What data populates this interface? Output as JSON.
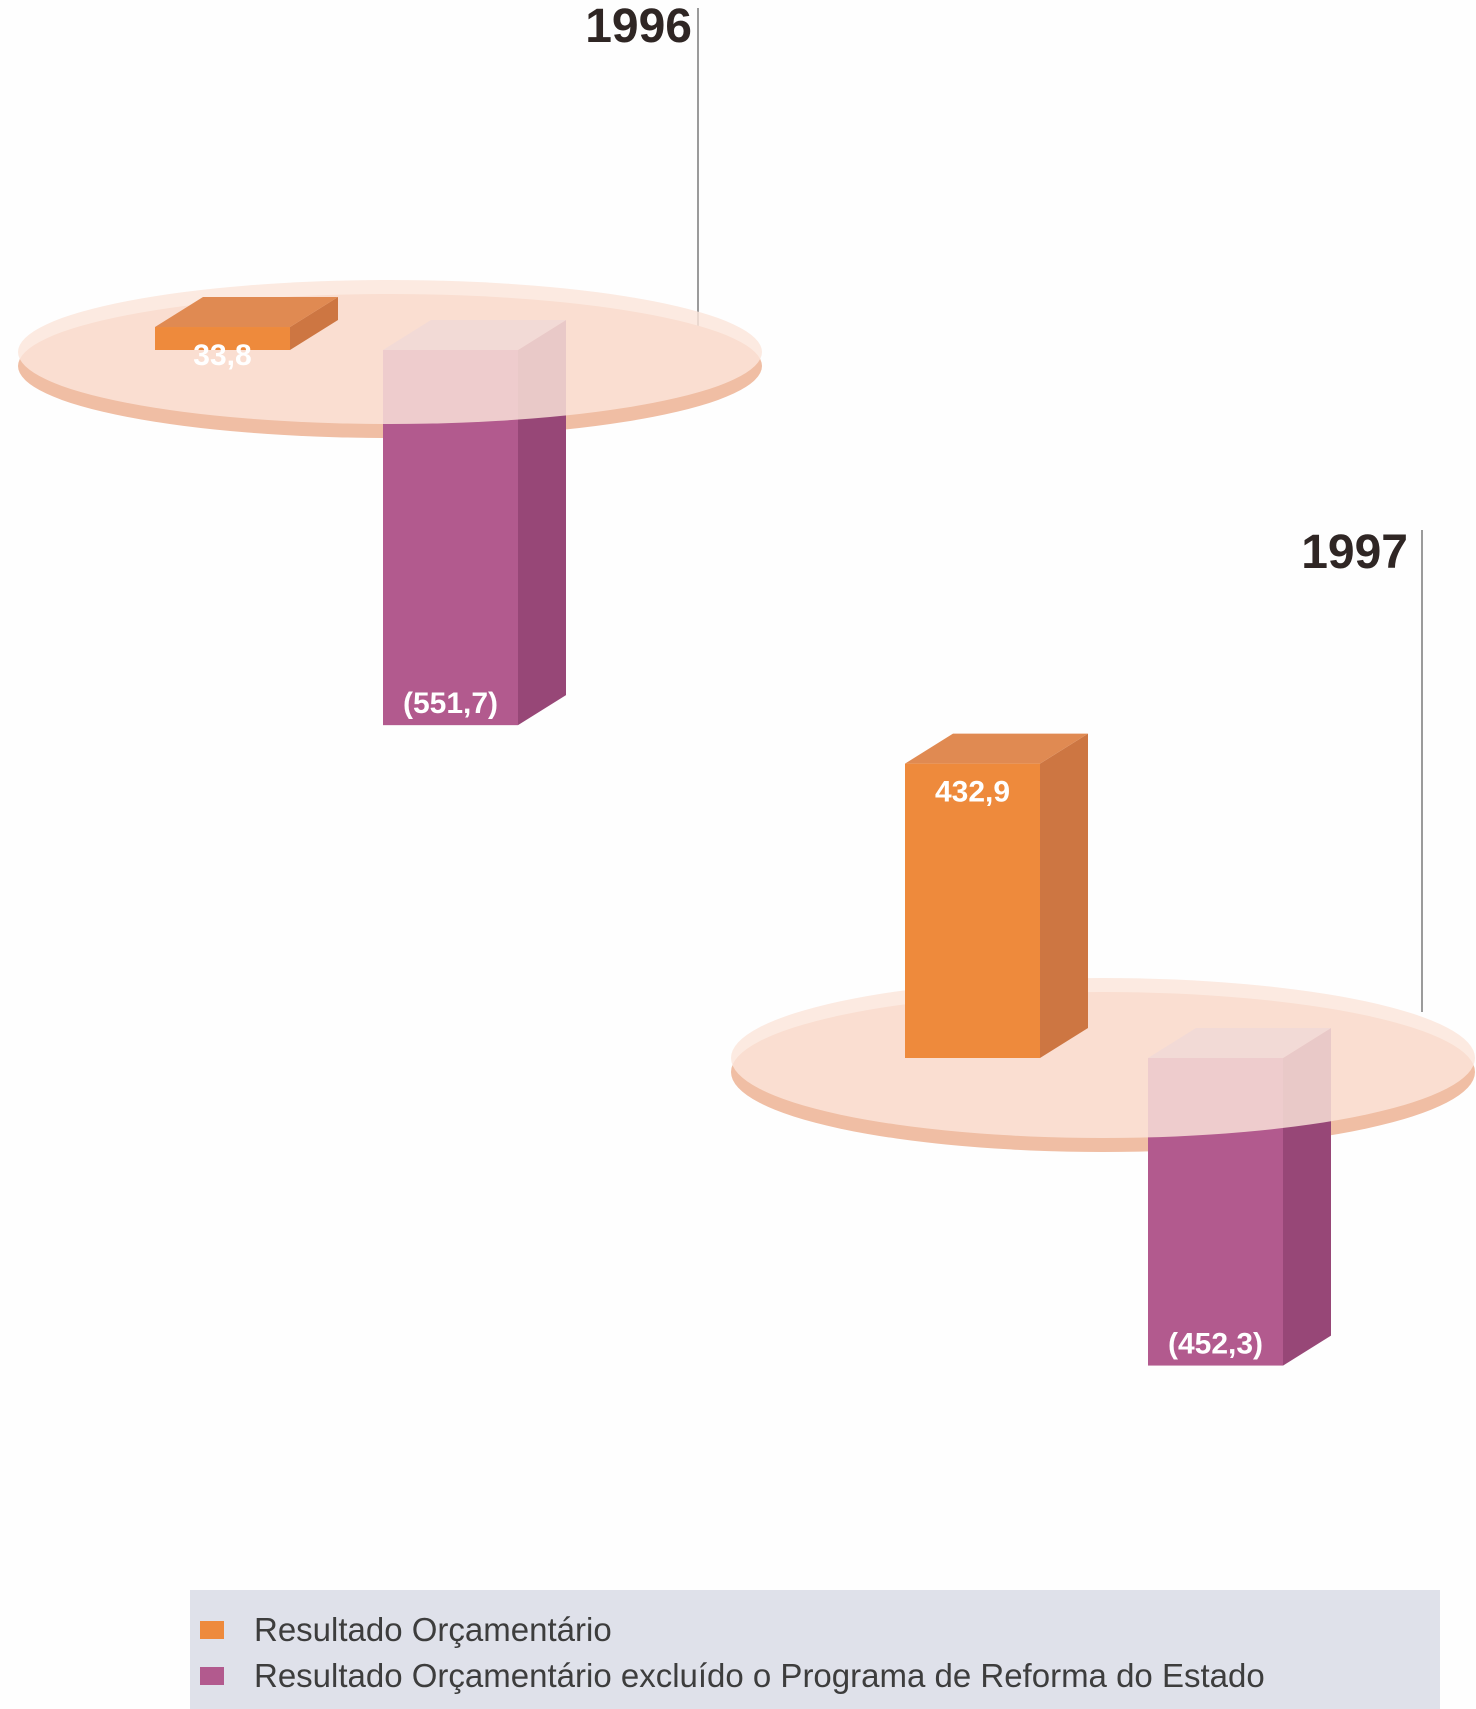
{
  "chart_data": {
    "type": "bar",
    "categories": [
      "1996",
      "1997"
    ],
    "series": [
      {
        "name": "Resultado Orçamentário",
        "values": [
          33.8,
          432.9
        ],
        "labels": [
          "33,8",
          "432,9"
        ],
        "color": "#ee8a3c"
      },
      {
        "name": "Resultado Orçamentário excluído o Programa de Reforma do Estado",
        "values": [
          -551.7,
          -452.3
        ],
        "labels": [
          "(551,7)",
          "(452,3)"
        ],
        "color": "#b25a8e"
      }
    ],
    "legend_position": "bottom",
    "grid": false,
    "xlabel": "",
    "ylabel": ""
  },
  "colors": {
    "orange_front": "#ee8a3c",
    "orange_side": "#cd7642",
    "orange_top": "#e08a52",
    "purple_front": "#b25a8e",
    "purple_side": "#974777",
    "purple_top": "#c9a5bf",
    "disc_top": "#fbe5da",
    "disc_edge": "#f0bea4"
  }
}
